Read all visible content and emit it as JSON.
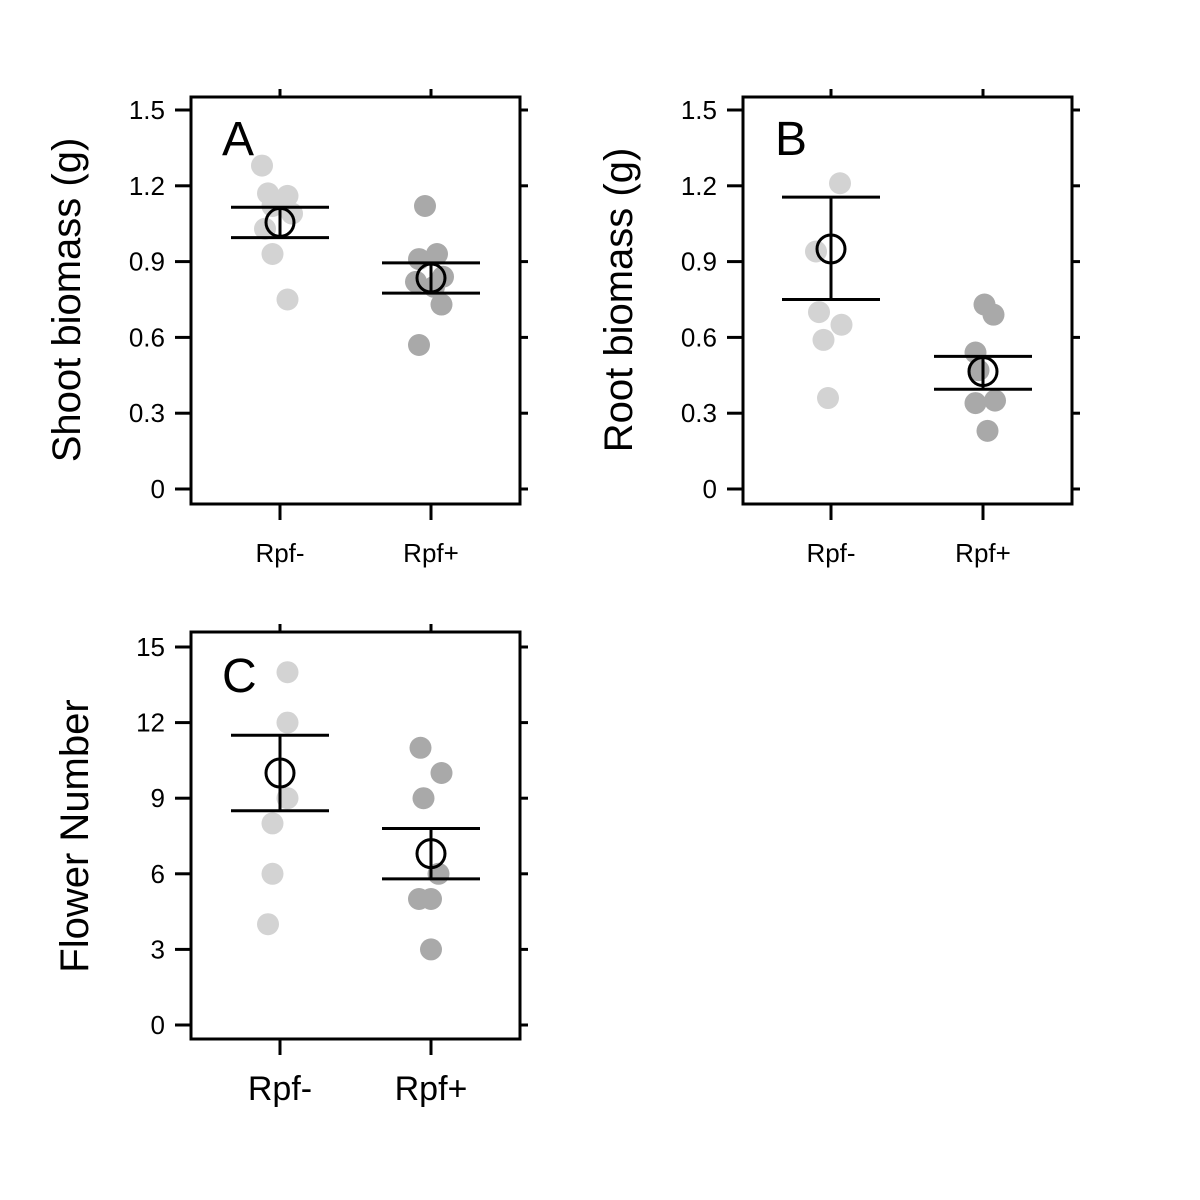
{
  "colors": {
    "rpf_minus_points": "#d3d3d3",
    "rpf_plus_points": "#a9a9a9",
    "mean_marker": "#000000",
    "error_bar": "#000000",
    "frame": "#000000",
    "background": "#ffffff"
  },
  "chart_data": [
    {
      "type": "scatter",
      "panel": "A",
      "categories": [
        "Rpf-",
        "Rpf+"
      ],
      "ylabel": "Shoot biomass (g)",
      "xlabel": "",
      "ylim": [
        0,
        1.5
      ],
      "yticks": [
        0,
        0.3,
        0.6,
        0.9,
        1.2,
        1.5
      ],
      "ytick_labels": [
        "0",
        "0.3",
        "0.6",
        "0.9",
        "1.2",
        "1.5"
      ],
      "grid": false,
      "series": [
        {
          "category": "Rpf-",
          "points": [
            {
              "x": -0.12,
              "y": 1.28
            },
            {
              "x": -0.08,
              "y": 1.17
            },
            {
              "x": 0.05,
              "y": 1.16
            },
            {
              "x": -0.05,
              "y": 1.12
            },
            {
              "x": 0.08,
              "y": 1.09
            },
            {
              "x": -0.1,
              "y": 1.03
            },
            {
              "x": -0.05,
              "y": 0.93
            },
            {
              "x": 0.05,
              "y": 0.75
            }
          ],
          "mean": 1.055,
          "error_low": 0.995,
          "error_high": 1.115
        },
        {
          "category": "Rpf+",
          "points": [
            {
              "x": -0.04,
              "y": 1.12
            },
            {
              "x": 0.04,
              "y": 0.93
            },
            {
              "x": -0.08,
              "y": 0.91
            },
            {
              "x": 0.08,
              "y": 0.84
            },
            {
              "x": -0.1,
              "y": 0.82
            },
            {
              "x": 0.02,
              "y": 0.8
            },
            {
              "x": 0.07,
              "y": 0.73
            },
            {
              "x": -0.08,
              "y": 0.57
            }
          ],
          "mean": 0.835,
          "error_low": 0.775,
          "error_high": 0.895
        }
      ]
    },
    {
      "type": "scatter",
      "panel": "B",
      "categories": [
        "Rpf-",
        "Rpf+"
      ],
      "ylabel": "Root biomass (g)",
      "xlabel": "",
      "ylim": [
        0,
        1.5
      ],
      "yticks": [
        0,
        0.3,
        0.6,
        0.9,
        1.2,
        1.5
      ],
      "ytick_labels": [
        "0",
        "0.3",
        "0.6",
        "0.9",
        "1.2",
        "1.5"
      ],
      "grid": false,
      "series": [
        {
          "category": "Rpf-",
          "points": [
            {
              "x": 0.06,
              "y": 1.21
            },
            {
              "x": -0.1,
              "y": 0.94
            },
            {
              "x": -0.08,
              "y": 0.7
            },
            {
              "x": 0.07,
              "y": 0.65
            },
            {
              "x": -0.05,
              "y": 0.59
            },
            {
              "x": -0.02,
              "y": 0.36
            }
          ],
          "mean": 0.95,
          "error_low": 0.75,
          "error_high": 1.155
        },
        {
          "category": "Rpf+",
          "points": [
            {
              "x": 0.01,
              "y": 0.73
            },
            {
              "x": 0.07,
              "y": 0.69
            },
            {
              "x": -0.05,
              "y": 0.54
            },
            {
              "x": -0.03,
              "y": 0.47
            },
            {
              "x": -0.05,
              "y": 0.34
            },
            {
              "x": 0.08,
              "y": 0.35
            },
            {
              "x": 0.03,
              "y": 0.23
            }
          ],
          "mean": 0.465,
          "error_low": 0.395,
          "error_high": 0.525
        }
      ]
    },
    {
      "type": "scatter",
      "panel": "C",
      "categories": [
        "Rpf-",
        "Rpf+"
      ],
      "ylabel": "Flower Number",
      "xlabel": "",
      "ylim": [
        0,
        15
      ],
      "yticks": [
        0,
        3,
        6,
        9,
        12,
        15
      ],
      "ytick_labels": [
        "0",
        "3",
        "6",
        "9",
        "12",
        "15"
      ],
      "grid": false,
      "series": [
        {
          "category": "Rpf-",
          "points": [
            {
              "x": 0.05,
              "y": 14
            },
            {
              "x": 0.05,
              "y": 12
            },
            {
              "x": 0.05,
              "y": 9
            },
            {
              "x": -0.05,
              "y": 8
            },
            {
              "x": -0.05,
              "y": 6
            },
            {
              "x": -0.08,
              "y": 4
            }
          ],
          "mean": 10.0,
          "error_low": 8.5,
          "error_high": 11.5
        },
        {
          "category": "Rpf+",
          "points": [
            {
              "x": -0.07,
              "y": 11
            },
            {
              "x": 0.07,
              "y": 10
            },
            {
              "x": -0.05,
              "y": 9
            },
            {
              "x": 0.05,
              "y": 6
            },
            {
              "x": -0.08,
              "y": 5
            },
            {
              "x": 0.0,
              "y": 5
            },
            {
              "x": 0.0,
              "y": 3
            }
          ],
          "mean": 6.8,
          "error_low": 5.8,
          "error_high": 7.8
        }
      ]
    }
  ]
}
